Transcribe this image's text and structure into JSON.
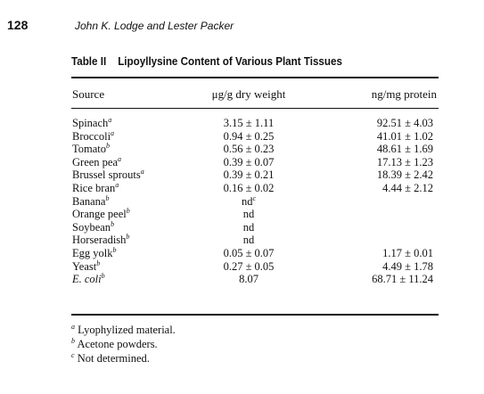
{
  "page_number": "128",
  "running_head": "John K. Lodge and Lester Packer",
  "table": {
    "label": "Table II",
    "title": "Lipoyllysine Content of Various Plant Tissues",
    "columns": [
      "Source",
      "μg/g dry weight",
      "ng/mg protein"
    ],
    "rows": [
      {
        "source": "Spinach",
        "mark": "a",
        "weight": "3.15 ± 1.11",
        "protein": "92.51 ± 4.03"
      },
      {
        "source": "Broccoli",
        "mark": "a",
        "weight": "0.94 ± 0.25",
        "protein": "41.01 ± 1.02"
      },
      {
        "source": "Tomato",
        "mark": "b",
        "weight": "0.56 ± 0.23",
        "protein": "48.61 ± 1.69"
      },
      {
        "source": "Green pea",
        "mark": "a",
        "weight": "0.39 ± 0.07",
        "protein": "17.13 ± 1.23"
      },
      {
        "source": "Brussel sprouts",
        "mark": "a",
        "weight": "0.39 ± 0.21",
        "protein": "18.39 ± 2.42"
      },
      {
        "source": "Rice bran",
        "mark": "a",
        "weight": "0.16 ± 0.02",
        "protein": "4.44 ± 2.12"
      },
      {
        "source": "Banana",
        "mark": "b",
        "weight": "nd",
        "weight_mark": "c",
        "protein": ""
      },
      {
        "source": "Orange peel",
        "mark": "b",
        "weight": "nd",
        "protein": ""
      },
      {
        "source": "Soybean",
        "mark": "b",
        "weight": "nd",
        "protein": ""
      },
      {
        "source": "Horseradish",
        "mark": "b",
        "weight": "nd",
        "protein": ""
      },
      {
        "source": "Egg yolk",
        "mark": "b",
        "weight": "0.05 ± 0.07",
        "protein": "1.17 ± 0.01"
      },
      {
        "source": "Yeast",
        "mark": "b",
        "weight": "0.27 ± 0.05",
        "protein": "4.49 ± 1.78"
      },
      {
        "source": "E. coli",
        "mark": "b",
        "italic": true,
        "weight": "8.07",
        "protein": "68.71 ± 11.24"
      }
    ]
  },
  "footnotes": [
    {
      "mark": "a",
      "text": "Lyophylized material."
    },
    {
      "mark": "b",
      "text": "Acetone powders."
    },
    {
      "mark": "c",
      "text": "Not determined."
    }
  ]
}
